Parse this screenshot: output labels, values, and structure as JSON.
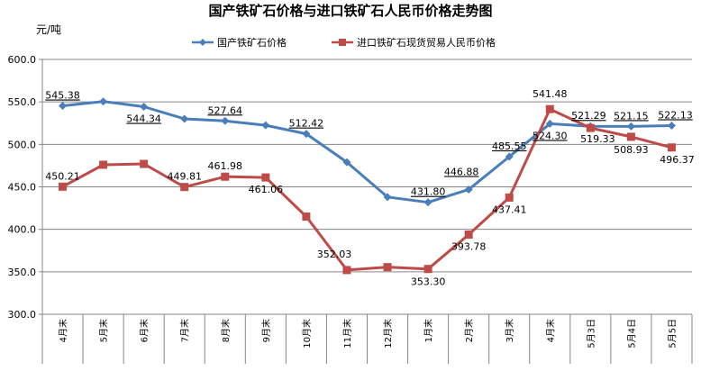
{
  "chart_data": {
    "type": "line",
    "title": "国产铁矿石价格与进口铁矿石人民币价格走势图",
    "ylabel": "元/吨",
    "ylim": [
      300,
      600
    ],
    "yticks": [
      "300.0",
      "350.0",
      "400.0",
      "450.0",
      "500.0",
      "550.0",
      "600.0"
    ],
    "grid": true,
    "legend_position": "top",
    "categories": [
      "4月末",
      "5月末",
      "6月末",
      "7月末",
      "8月末",
      "9月末",
      "10月末",
      "11月末",
      "12月末",
      "1月末",
      "2月末",
      "3月末",
      "4月末",
      "5月3日",
      "5月4日",
      "5月5日"
    ],
    "series": [
      {
        "name": "国产铁矿石价格",
        "color": "#4A7EBB",
        "marker": "diamond",
        "values": [
          545.38,
          550.5,
          544.34,
          530.0,
          527.64,
          522.5,
          512.42,
          479.0,
          438.0,
          431.8,
          446.88,
          485.55,
          524.3,
          521.29,
          521.15,
          522.13
        ],
        "labels": [
          "545.38",
          null,
          "544.34",
          null,
          "527.64",
          null,
          "512.42",
          null,
          null,
          "431.80",
          "446.88",
          "485.55",
          "524.30",
          "521.29",
          "521.15",
          "522.13"
        ]
      },
      {
        "name": "进口铁矿石现货贸易人民币价格",
        "color": "#BE4B48",
        "marker": "square",
        "values": [
          450.21,
          476.0,
          477.0,
          449.81,
          461.98,
          461.06,
          415.0,
          352.03,
          355.5,
          353.3,
          393.78,
          437.41,
          541.48,
          519.33,
          508.93,
          496.37
        ],
        "labels": [
          "450.21",
          null,
          null,
          "449.81",
          "461.98",
          "461.06",
          null,
          "352.03",
          null,
          "353.30",
          "393.78",
          "437.41",
          "541.48",
          "519.33",
          "508.93",
          "496.37"
        ]
      }
    ]
  }
}
